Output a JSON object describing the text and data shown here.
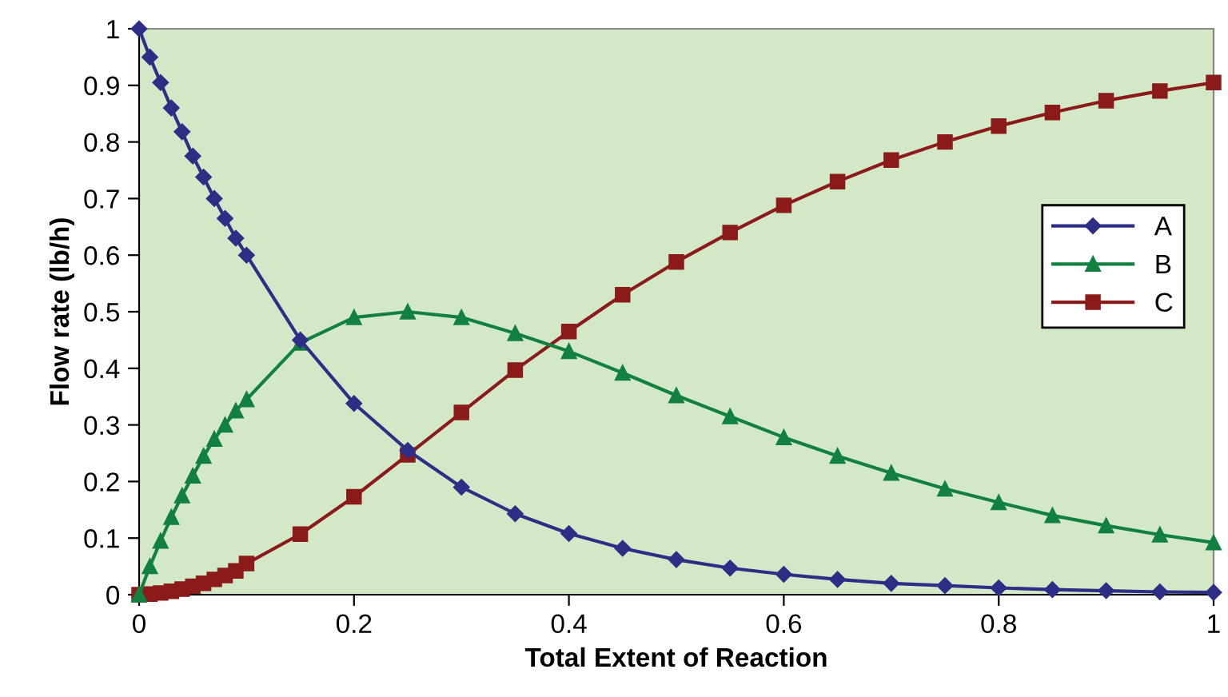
{
  "chart_data": {
    "type": "line",
    "xlabel": "Total Extent of Reaction",
    "ylabel": "Flow rate (lb/h)",
    "x": [
      0,
      0.01,
      0.02,
      0.03,
      0.04,
      0.05,
      0.06,
      0.07,
      0.08,
      0.09,
      0.1,
      0.15,
      0.2,
      0.25,
      0.3,
      0.35,
      0.4,
      0.45,
      0.5,
      0.55,
      0.6,
      0.65,
      0.7,
      0.75,
      0.8,
      0.85,
      0.9,
      0.95,
      1
    ],
    "series": [
      {
        "name": "A",
        "color": "#2e2e86",
        "marker": "diamond",
        "values": [
          1,
          0.95,
          0.905,
          0.86,
          0.818,
          0.775,
          0.738,
          0.7,
          0.665,
          0.63,
          0.6,
          0.45,
          0.338,
          0.255,
          0.19,
          0.143,
          0.108,
          0.082,
          0.062,
          0.047,
          0.036,
          0.027,
          0.02,
          0.016,
          0.012,
          0.009,
          0.007,
          0.005,
          0.004
        ]
      },
      {
        "name": "B",
        "color": "#118040",
        "marker": "triangle",
        "values": [
          0,
          0.05,
          0.095,
          0.137,
          0.175,
          0.21,
          0.245,
          0.275,
          0.3,
          0.325,
          0.345,
          0.445,
          0.49,
          0.5,
          0.49,
          0.462,
          0.43,
          0.392,
          0.352,
          0.315,
          0.278,
          0.245,
          0.215,
          0.187,
          0.163,
          0.14,
          0.122,
          0.106,
          0.092
        ]
      },
      {
        "name": "C",
        "color": "#8b1a1a",
        "marker": "square",
        "values": [
          0,
          0.001,
          0.003,
          0.006,
          0.01,
          0.015,
          0.02,
          0.027,
          0.034,
          0.042,
          0.055,
          0.107,
          0.173,
          0.247,
          0.322,
          0.397,
          0.465,
          0.53,
          0.588,
          0.64,
          0.688,
          0.73,
          0.768,
          0.8,
          0.828,
          0.852,
          0.873,
          0.89,
          0.905
        ]
      }
    ],
    "xlim": [
      0,
      1
    ],
    "xticks": [
      0,
      0.2,
      0.4,
      0.6,
      0.8,
      1
    ],
    "ylim": [
      0,
      1
    ],
    "yticks": [
      0,
      0.1,
      0.2,
      0.3,
      0.4,
      0.5,
      0.6,
      0.7,
      0.8,
      0.9,
      1
    ],
    "grid": false,
    "legend": "right",
    "line_style": "solid"
  }
}
